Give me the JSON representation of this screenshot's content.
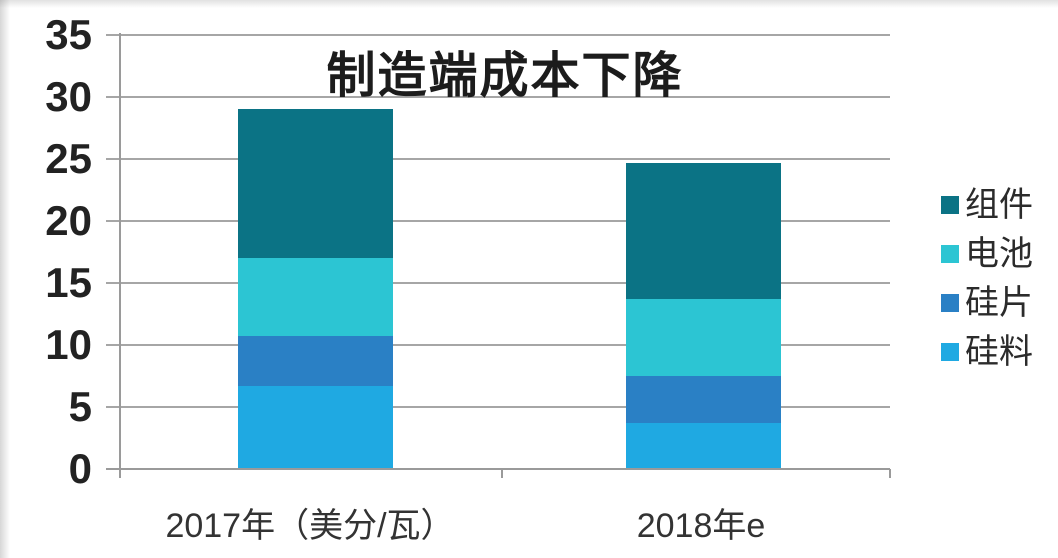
{
  "chart_data": {
    "type": "bar",
    "stacked": true,
    "title": "制造端成本下降",
    "categories": [
      "2017年（美分/瓦）",
      "2018年e"
    ],
    "series": [
      {
        "name": "硅料",
        "color": "#1fa9e2",
        "values": [
          6.7,
          3.7
        ]
      },
      {
        "name": "硅片",
        "color": "#2a80c5",
        "values": [
          4.0,
          3.8
        ]
      },
      {
        "name": "电池",
        "color": "#2cc5d3",
        "values": [
          6.3,
          6.2
        ]
      },
      {
        "name": "组件",
        "color": "#0b7385",
        "values": [
          12.0,
          11.0
        ]
      }
    ],
    "totals": [
      29.0,
      24.7
    ],
    "ylim": [
      0,
      35
    ],
    "y_ticks": [
      0,
      5,
      10,
      15,
      20,
      25,
      30,
      35
    ],
    "grid": true,
    "legend_position": "right",
    "legend_order_top_to_bottom": [
      "组件",
      "电池",
      "硅片",
      "硅料"
    ],
    "style": {
      "grid_color": "#a6a6a6",
      "axis_color": "#9a9a9a",
      "title_color": "#1c1c1c",
      "tick_color": "#222222",
      "xlabel_color": "#333333",
      "legend_text_color": "#2b2b2b"
    }
  }
}
